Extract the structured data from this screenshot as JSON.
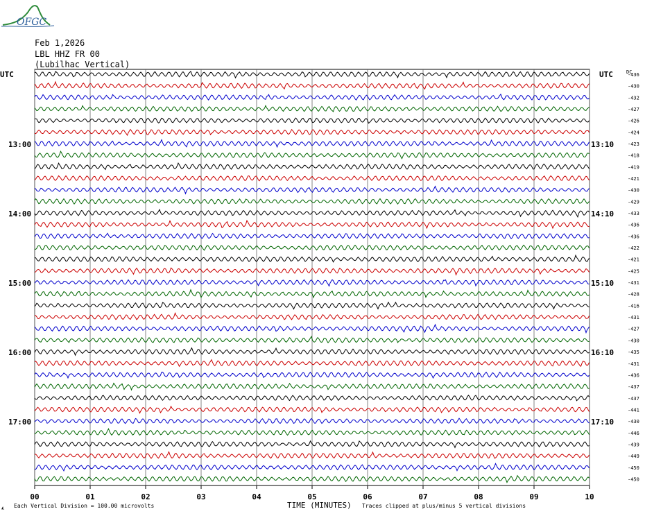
{
  "header": {
    "date": "Feb 1,2026",
    "station": "LBL HHZ FR 00",
    "location": "(Lubilhac Vertical)",
    "logo_text": "OFGC"
  },
  "chart_data": {
    "type": "line",
    "left_axis_label": "UTC",
    "right_axis_label": "UTC",
    "dc_label": "DC",
    "left_hour_labels": [
      "13:00",
      "14:00",
      "15:00",
      "16:00",
      "17:00"
    ],
    "right_hour_labels": [
      "13:10",
      "14:10",
      "15:10",
      "16:10",
      "17:10"
    ],
    "x_ticks": [
      "00",
      "01",
      "02",
      "03",
      "04",
      "05",
      "06",
      "07",
      "08",
      "09",
      "10"
    ],
    "xlabel": "TIME (MINUTES)",
    "dc_offsets": [
      "-436",
      "-430",
      "-432",
      "-427",
      "-426",
      "-424",
      "-423",
      "-418",
      "-419",
      "-421",
      "-430",
      "-429",
      "-433",
      "-436",
      "-436",
      "-422",
      "-421",
      "-425",
      "-431",
      "-428",
      "-416",
      "-431",
      "-427",
      "-430",
      "-435",
      "-431",
      "-436",
      "-437",
      "-437",
      "-441",
      "-430",
      "-446",
      "-439",
      "-449",
      "-450",
      "-450"
    ],
    "trace_colors": [
      "#000000",
      "#cc0000",
      "#0000cc",
      "#006600"
    ],
    "xlim": [
      0,
      10
    ]
  },
  "footer": {
    "scale_note": "Each Vertical Division =  100.00 microvolts",
    "clip_note": "Traces clipped at plus/minus 5 vertical divisions"
  }
}
